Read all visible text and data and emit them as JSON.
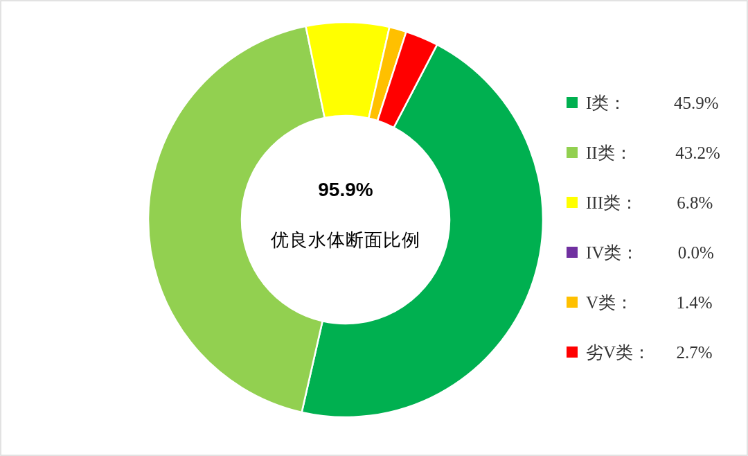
{
  "chart_data": {
    "type": "donut",
    "categories": [
      "I类",
      "II类",
      "III类",
      "IV类",
      "V类",
      "劣V类"
    ],
    "values": [
      45.9,
      43.2,
      6.8,
      0.0,
      1.4,
      2.7
    ],
    "colors": [
      "#00b050",
      "#92d050",
      "#ffff00",
      "#7030a0",
      "#ffc000",
      "#ff0000"
    ],
    "value_labels": [
      "45.9%",
      "43.2%",
      "6.8%",
      "0.0%",
      "1.4%",
      "2.7%"
    ],
    "annotations": [
      "95.9%",
      "优良水体断面比例"
    ],
    "legend": "right"
  }
}
